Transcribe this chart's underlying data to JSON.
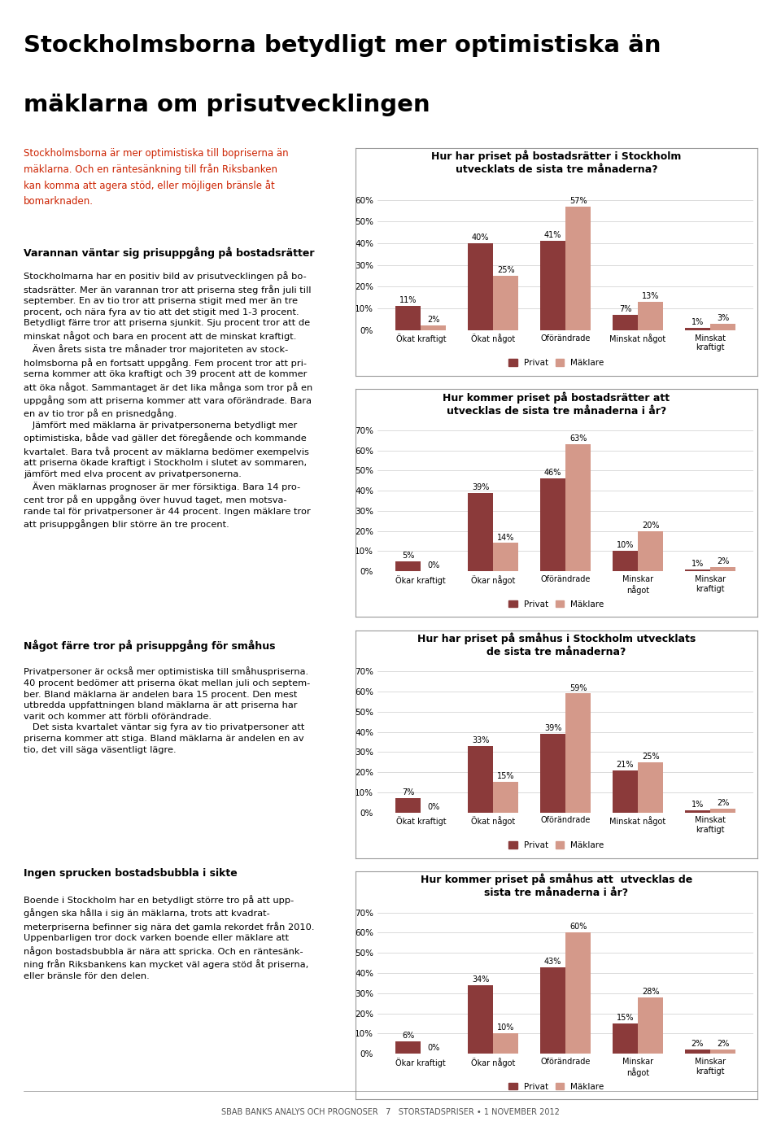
{
  "chart1": {
    "title": "Hur har priset på bostadsrätter i Stockholm\nutvecklats de sista tre månaderna?",
    "categories": [
      "Ökat kraftigt",
      "Ökat något",
      "Oförändrade",
      "Minskat något",
      "Minskat\nkraftigt"
    ],
    "privat": [
      11,
      40,
      41,
      7,
      1
    ],
    "maklare": [
      2,
      25,
      57,
      13,
      3
    ],
    "ylim": [
      0,
      65
    ],
    "yticks": [
      0,
      10,
      20,
      30,
      40,
      50,
      60
    ],
    "ytick_labels": [
      "0%",
      "10%",
      "20%",
      "30%",
      "40%",
      "50%",
      "60%"
    ]
  },
  "chart2": {
    "title": "Hur kommer priset på bostadsrätter att\nutvecklas de sista tre månaderna i år?",
    "categories": [
      "Ökar kraftigt",
      "Ökar något",
      "Oförändrade",
      "Minskar\nnågot",
      "Minskar\nkraftigt"
    ],
    "privat": [
      5,
      39,
      46,
      10,
      1
    ],
    "maklare": [
      0,
      14,
      63,
      20,
      2
    ],
    "ylim": [
      0,
      70
    ],
    "yticks": [
      0,
      10,
      20,
      30,
      40,
      50,
      60,
      70
    ],
    "ytick_labels": [
      "0%",
      "10%",
      "20%",
      "30%",
      "40%",
      "50%",
      "60%",
      "70%"
    ]
  },
  "chart3": {
    "title": "Hur har priset på småhus i Stockholm utvecklats\nde sista tre månaderna?",
    "categories": [
      "Ökat kraftigt",
      "Ökat något",
      "Oförändrade",
      "Minskat något",
      "Minskat\nkraftigt"
    ],
    "privat": [
      7,
      33,
      39,
      21,
      1
    ],
    "maklare": [
      0,
      15,
      59,
      25,
      2
    ],
    "ylim": [
      0,
      70
    ],
    "yticks": [
      0,
      10,
      20,
      30,
      40,
      50,
      60,
      70
    ],
    "ytick_labels": [
      "0%",
      "10%",
      "20%",
      "30%",
      "40%",
      "50%",
      "60%",
      "70%"
    ]
  },
  "chart4": {
    "title": "Hur kommer priset på småhus att  utvecklas de\nsista tre månaderna i år?",
    "categories": [
      "Ökar kraftigt",
      "Ökar något",
      "Oförändrade",
      "Minskar\nnågot",
      "Minskar\nkraftigt"
    ],
    "privat": [
      6,
      34,
      43,
      15,
      2
    ],
    "maklare": [
      0,
      10,
      60,
      28,
      2
    ],
    "ylim": [
      0,
      70
    ],
    "yticks": [
      0,
      10,
      20,
      30,
      40,
      50,
      60,
      70
    ],
    "ytick_labels": [
      "0%",
      "10%",
      "20%",
      "30%",
      "40%",
      "50%",
      "60%",
      "70%"
    ]
  },
  "colors": {
    "privat": "#8B3A3A",
    "maklare": "#D4998A"
  },
  "title_main_line1": "Stockholmsborna betydligt mer optimistiska än",
  "title_main_line2": "mäklarna om prisutvecklingen",
  "footer": "SBAB BANKS ANALYS OCH PROGNOSER   7   STORSTADSPRISER • 1 NOVEMBER 2012",
  "background": "#FFFFFF"
}
